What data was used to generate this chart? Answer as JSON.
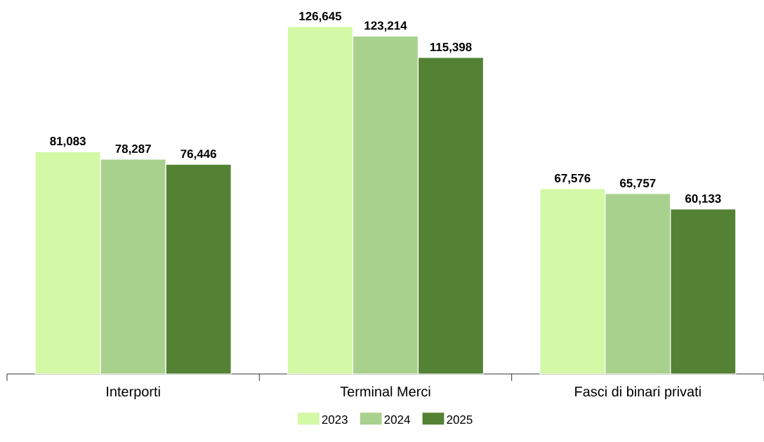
{
  "chart_data": {
    "type": "bar",
    "categories": [
      "Interporti",
      "Terminal Merci",
      "Fasci di binari privati"
    ],
    "series": [
      {
        "name": "2023",
        "color": "#d3f8a6",
        "values": [
          81083,
          126645,
          67576
        ],
        "value_labels": [
          "81,083",
          "126,645",
          "67,576"
        ]
      },
      {
        "name": "2024",
        "color": "#a9d18e",
        "values": [
          78287,
          123214,
          65757
        ],
        "value_labels": [
          "78,287",
          "123,214",
          "65,757"
        ]
      },
      {
        "name": "2025",
        "color": "#548235",
        "values": [
          76446,
          115398,
          60133
        ],
        "value_labels": [
          "76,446",
          "115,398",
          "60,133"
        ]
      }
    ],
    "tick_labels": "x",
    "legend": "bottom"
  }
}
